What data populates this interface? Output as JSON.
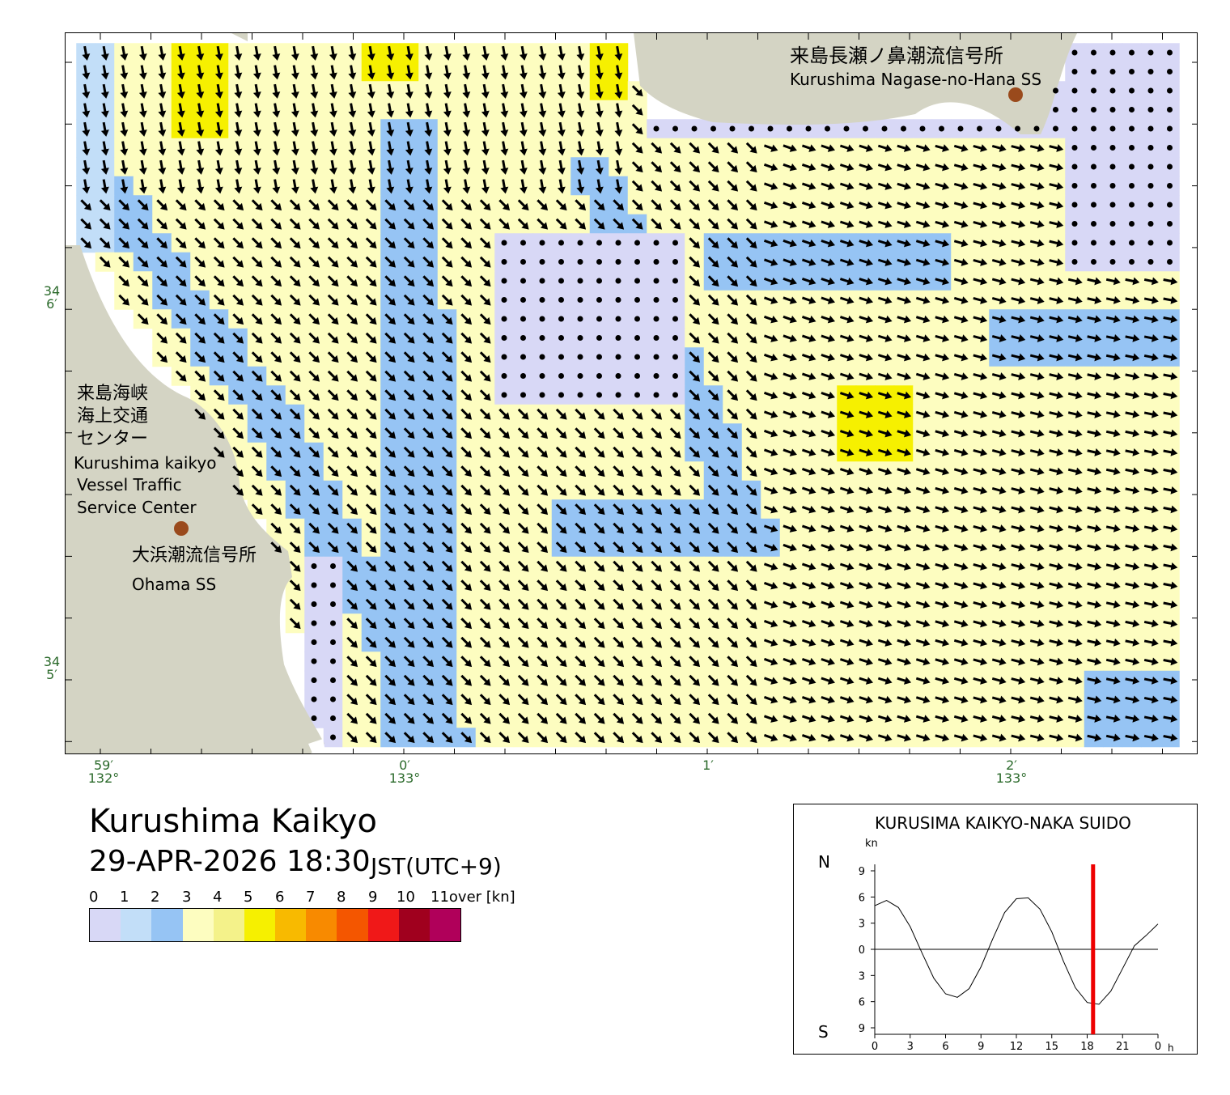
{
  "title": "Kurushima Kaikyo",
  "datetime": "29-APR-2026 18:30",
  "timezone": "JST(UTC+9)",
  "legend": {
    "labels": [
      "0",
      "1",
      "2",
      "3",
      "4",
      "5",
      "6",
      "7",
      "8",
      "9",
      "10",
      "11over [kn]"
    ],
    "colors": [
      "#d8d8f6",
      "#c2def8",
      "#96c4f4",
      "#fdfdc0",
      "#f4f28a",
      "#f6f000",
      "#f8ba00",
      "#f88a00",
      "#f45600",
      "#f01818",
      "#a0001e",
      "#b0005a"
    ]
  },
  "map": {
    "colors": {
      "land": "#d4d4c4",
      "sea_shallow": "#d8d8f6",
      "arrow": "#000000"
    },
    "lat_labels": [
      {
        "deg": "34",
        "min": "6′"
      },
      {
        "deg": "34",
        "min": "5′"
      }
    ],
    "lon_labels": [
      {
        "min": "59′",
        "deg": "132°"
      },
      {
        "min": "0′",
        "deg": "133°"
      },
      {
        "min": "1′",
        "deg": ""
      },
      {
        "min": "2′",
        "deg": "133°"
      }
    ],
    "stations": {
      "nagase_jp": "来島長瀬ノ鼻潮流信号所",
      "nagase_en": "Kurushima Nagase-no-Hana SS",
      "vtsc_jp_1": "来島海峡",
      "vtsc_jp_2": "海上交通",
      "vtsc_jp_3": "センター",
      "vtsc_en_1": "Kurushima kaikyo",
      "vtsc_en_2": "Vessel Traffic",
      "vtsc_en_3": "Service Center",
      "ohama_jp": "大浜潮流信号所",
      "ohama_en": "Ohama SS"
    },
    "station_color": "#9a4a1c"
  },
  "tide_chart": {
    "title": "KURUSIMA KAIKYO-NAKA SUIDO",
    "unit": "kn",
    "north_label": "N",
    "south_label": "S",
    "y_ticks": [
      "9",
      "6",
      "3",
      "0",
      "3",
      "6",
      "9"
    ],
    "x_ticks": [
      "0",
      "3",
      "6",
      "9",
      "12",
      "15",
      "18",
      "21",
      "0"
    ],
    "x_unit": "h",
    "current_time_h": 18.5,
    "current_time_color": "#ee0000",
    "chart_data": {
      "type": "line",
      "x": [
        0,
        1,
        2,
        3,
        4,
        5,
        6,
        7,
        8,
        9,
        10,
        11,
        12,
        13,
        14,
        15,
        16,
        17,
        18,
        19,
        20,
        21,
        22,
        23,
        24
      ],
      "series": [
        {
          "values": [
            5.0,
            5.6,
            4.8,
            2.6,
            -0.4,
            -3.3,
            -5.1,
            -5.5,
            -4.5,
            -2.0,
            1.2,
            4.2,
            5.8,
            5.9,
            4.6,
            2.0,
            -1.4,
            -4.4,
            -6.1,
            -6.3,
            -4.8,
            -2.2,
            0.4,
            1.6,
            2.9
          ]
        }
      ],
      "xlim": [
        0,
        24
      ],
      "ylim": [
        -9,
        9
      ]
    }
  }
}
